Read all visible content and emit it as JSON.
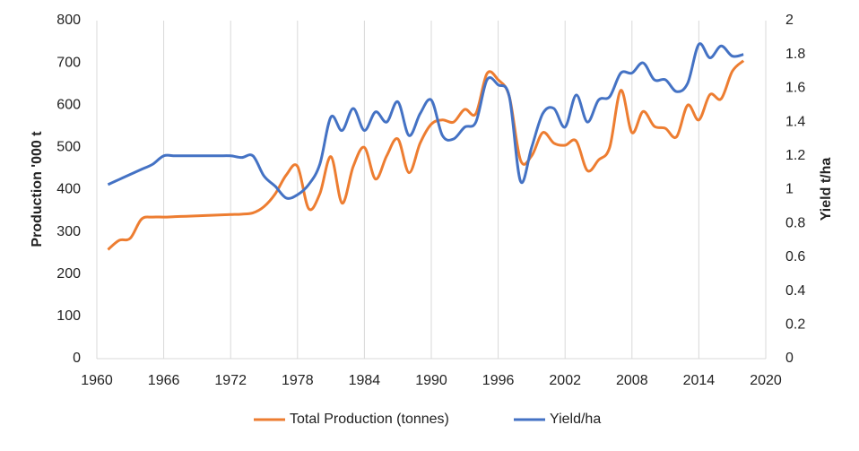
{
  "chart_data": {
    "type": "line",
    "y_label": "Production '000 t",
    "y2_label": "Yield t/ha",
    "x": [
      1961,
      1962,
      1963,
      1964,
      1965,
      1966,
      1967,
      1968,
      1969,
      1970,
      1971,
      1972,
      1973,
      1974,
      1975,
      1976,
      1977,
      1978,
      1979,
      1980,
      1981,
      1982,
      1983,
      1984,
      1985,
      1986,
      1987,
      1988,
      1989,
      1990,
      1991,
      1992,
      1993,
      1994,
      1995,
      1996,
      1997,
      1998,
      1999,
      2000,
      2001,
      2002,
      2003,
      2004,
      2005,
      2006,
      2007,
      2008,
      2009,
      2010,
      2011,
      2012,
      2013,
      2014,
      2015,
      2016,
      2017,
      2018
    ],
    "series": [
      {
        "name": "Total Production (tonnes)",
        "color": "#ed7d31",
        "values": [
          258,
          280,
          285,
          330,
          335,
          335,
          336,
          337,
          338,
          339,
          340,
          341,
          342,
          345,
          360,
          390,
          435,
          455,
          355,
          390,
          478,
          368,
          455,
          500,
          425,
          480,
          520,
          440,
          510,
          555,
          565,
          560,
          590,
          580,
          675,
          660,
          620,
          470,
          480,
          535,
          510,
          505,
          515,
          445,
          470,
          500,
          635,
          535,
          585,
          550,
          545,
          525,
          600,
          565,
          625,
          615,
          680,
          705
        ]
      },
      {
        "name": "Yield/ha",
        "color": "#4472c4",
        "axis": "y2",
        "values": [
          1.03,
          1.06,
          1.09,
          1.12,
          1.15,
          1.2,
          1.2,
          1.2,
          1.2,
          1.2,
          1.2,
          1.2,
          1.19,
          1.2,
          1.08,
          1.02,
          0.95,
          0.97,
          1.03,
          1.15,
          1.43,
          1.35,
          1.48,
          1.35,
          1.46,
          1.4,
          1.52,
          1.32,
          1.45,
          1.53,
          1.32,
          1.3,
          1.37,
          1.4,
          1.65,
          1.62,
          1.55,
          1.05,
          1.25,
          1.45,
          1.48,
          1.37,
          1.56,
          1.4,
          1.53,
          1.55,
          1.69,
          1.69,
          1.75,
          1.65,
          1.65,
          1.58,
          1.63,
          1.86,
          1.78,
          1.85,
          1.79,
          1.8
        ]
      }
    ],
    "xlim": [
      1960,
      2020
    ],
    "xticks": [
      1960,
      1966,
      1972,
      1978,
      1984,
      1990,
      1996,
      2002,
      2008,
      2014,
      2020
    ],
    "ylim": [
      0,
      800
    ],
    "yticks": [
      0,
      100,
      200,
      300,
      400,
      500,
      600,
      700,
      800
    ],
    "y2lim": [
      0,
      2
    ],
    "y2ticks": [
      0,
      0.2,
      0.4,
      0.6,
      0.8,
      1,
      1.2,
      1.4,
      1.6,
      1.8,
      2
    ],
    "grid": "x",
    "legend": "bottom"
  }
}
